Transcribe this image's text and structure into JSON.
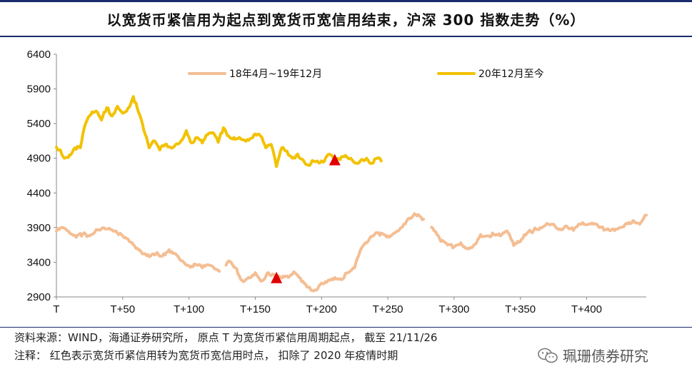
{
  "title": "以宽货币紧信用为起点到宽货币宽信用结束，沪深 300 指数走势（%）",
  "notes": {
    "source": "资料来源：WIND，海通证券研究所，  原点 T 为宽货币紧信用周期起点，  截至 21/11/26",
    "remark": "注释：  红色表示宽货币紧信用转为宽货币宽信用时点，  扣除了 2020 年疫情时期"
  },
  "watermark": {
    "text": "珮珊债券研究",
    "icon": "wechat-icon"
  },
  "colors": {
    "series1": "#F4BE93",
    "series2": "#F2C200",
    "marker": "#E00000",
    "title_rule": "#1a2b6d"
  },
  "chart_data": {
    "type": "line",
    "title": "以宽货币紧信用为起点到宽货币宽信用结束，沪深 300 指数走势（%）",
    "xlabel": "",
    "ylabel": "",
    "xlim": [
      0,
      445
    ],
    "ylim": [
      2900,
      6400
    ],
    "yticks": [
      2900,
      3400,
      3900,
      4400,
      4900,
      5400,
      5900,
      6400
    ],
    "xtick_values": [
      0,
      50,
      100,
      150,
      200,
      250,
      300,
      350,
      400
    ],
    "xtick_labels": [
      "T",
      "T+50",
      "T+100",
      "T+150",
      "T+200",
      "T+250",
      "T+300",
      "T+350",
      "T+400"
    ],
    "grid": false,
    "legend_position": "top",
    "series": [
      {
        "name": "18年4月~19年12月",
        "color": "#F4BE93",
        "x": [
          0,
          5,
          10,
          15,
          20,
          25,
          30,
          35,
          40,
          45,
          50,
          55,
          60,
          65,
          70,
          75,
          80,
          85,
          90,
          95,
          100,
          105,
          110,
          115,
          120,
          125,
          130,
          135,
          140,
          145,
          150,
          155,
          160,
          165,
          170,
          175,
          180,
          185,
          190,
          195,
          200,
          205,
          210,
          215,
          220,
          225,
          230,
          235,
          240,
          245,
          250,
          255,
          260,
          265,
          270,
          275,
          280,
          285,
          290,
          295,
          300,
          305,
          310,
          315,
          320,
          325,
          330,
          335,
          340,
          345,
          350,
          355,
          360,
          365,
          370,
          375,
          380,
          385,
          390,
          395,
          400,
          405,
          410,
          415,
          420,
          425,
          430,
          435,
          440,
          445
        ],
        "y": [
          3850,
          3900,
          3820,
          3760,
          3810,
          3780,
          3870,
          3900,
          3890,
          3850,
          3780,
          3700,
          3600,
          3520,
          3480,
          3520,
          3490,
          3580,
          3520,
          3420,
          3350,
          3370,
          3320,
          3360,
          3300,
          3230,
          3420,
          3320,
          3140,
          3180,
          3250,
          3130,
          3250,
          3200,
          3170,
          3180,
          3250,
          3120,
          3040,
          3000,
          3100,
          3140,
          3180,
          3150,
          3250,
          3320,
          3600,
          3700,
          3800,
          3820,
          3780,
          3820,
          3900,
          4020,
          4100,
          4050,
          3920,
          3850,
          3700,
          3650,
          3620,
          3680,
          3600,
          3650,
          3800,
          3780,
          3800,
          3780,
          3850,
          3640,
          3700,
          3820,
          3860,
          3900,
          3960,
          3950,
          3880,
          3920,
          3860,
          3950,
          3940,
          3950,
          3900,
          3870,
          3880,
          3900,
          3960,
          4000,
          3950,
          4080
        ],
        "gaps": [
          [
            123,
            128
          ],
          [
            277,
            283
          ]
        ]
      },
      {
        "name": "20年12月至今",
        "color": "#F2C200",
        "x": [
          0,
          3,
          6,
          10,
          14,
          18,
          22,
          26,
          30,
          34,
          38,
          42,
          46,
          50,
          54,
          58,
          62,
          66,
          70,
          74,
          78,
          82,
          86,
          90,
          94,
          98,
          102,
          106,
          110,
          114,
          118,
          122,
          126,
          130,
          134,
          138,
          142,
          146,
          150,
          154,
          158,
          162,
          166,
          170,
          174,
          178,
          182,
          186,
          190,
          194,
          198,
          202,
          206,
          210,
          214,
          218,
          222,
          226,
          230,
          234,
          238,
          242,
          245
        ],
        "y": [
          5060,
          5020,
          4900,
          4950,
          5050,
          5050,
          5400,
          5530,
          5580,
          5450,
          5630,
          5510,
          5650,
          5550,
          5620,
          5790,
          5560,
          5300,
          5050,
          5150,
          5020,
          5100,
          5060,
          5100,
          5150,
          5300,
          5120,
          5200,
          5120,
          5240,
          5270,
          5130,
          5340,
          5220,
          5200,
          5200,
          5160,
          5180,
          5250,
          5220,
          5050,
          5100,
          4780,
          5050,
          5000,
          4900,
          4960,
          4880,
          4800,
          4860,
          4830,
          4850,
          4960,
          4860,
          4880,
          4940,
          4900,
          4830,
          4880,
          4900,
          4830,
          4900,
          4860
        ]
      }
    ],
    "markers": [
      {
        "series": "18年4月~19年12月",
        "x": 166,
        "y": 3170,
        "shape": "triangle",
        "color": "#E00000"
      },
      {
        "series": "20年12月至今",
        "x": 210,
        "y": 4870,
        "shape": "triangle",
        "color": "#E00000"
      }
    ]
  }
}
